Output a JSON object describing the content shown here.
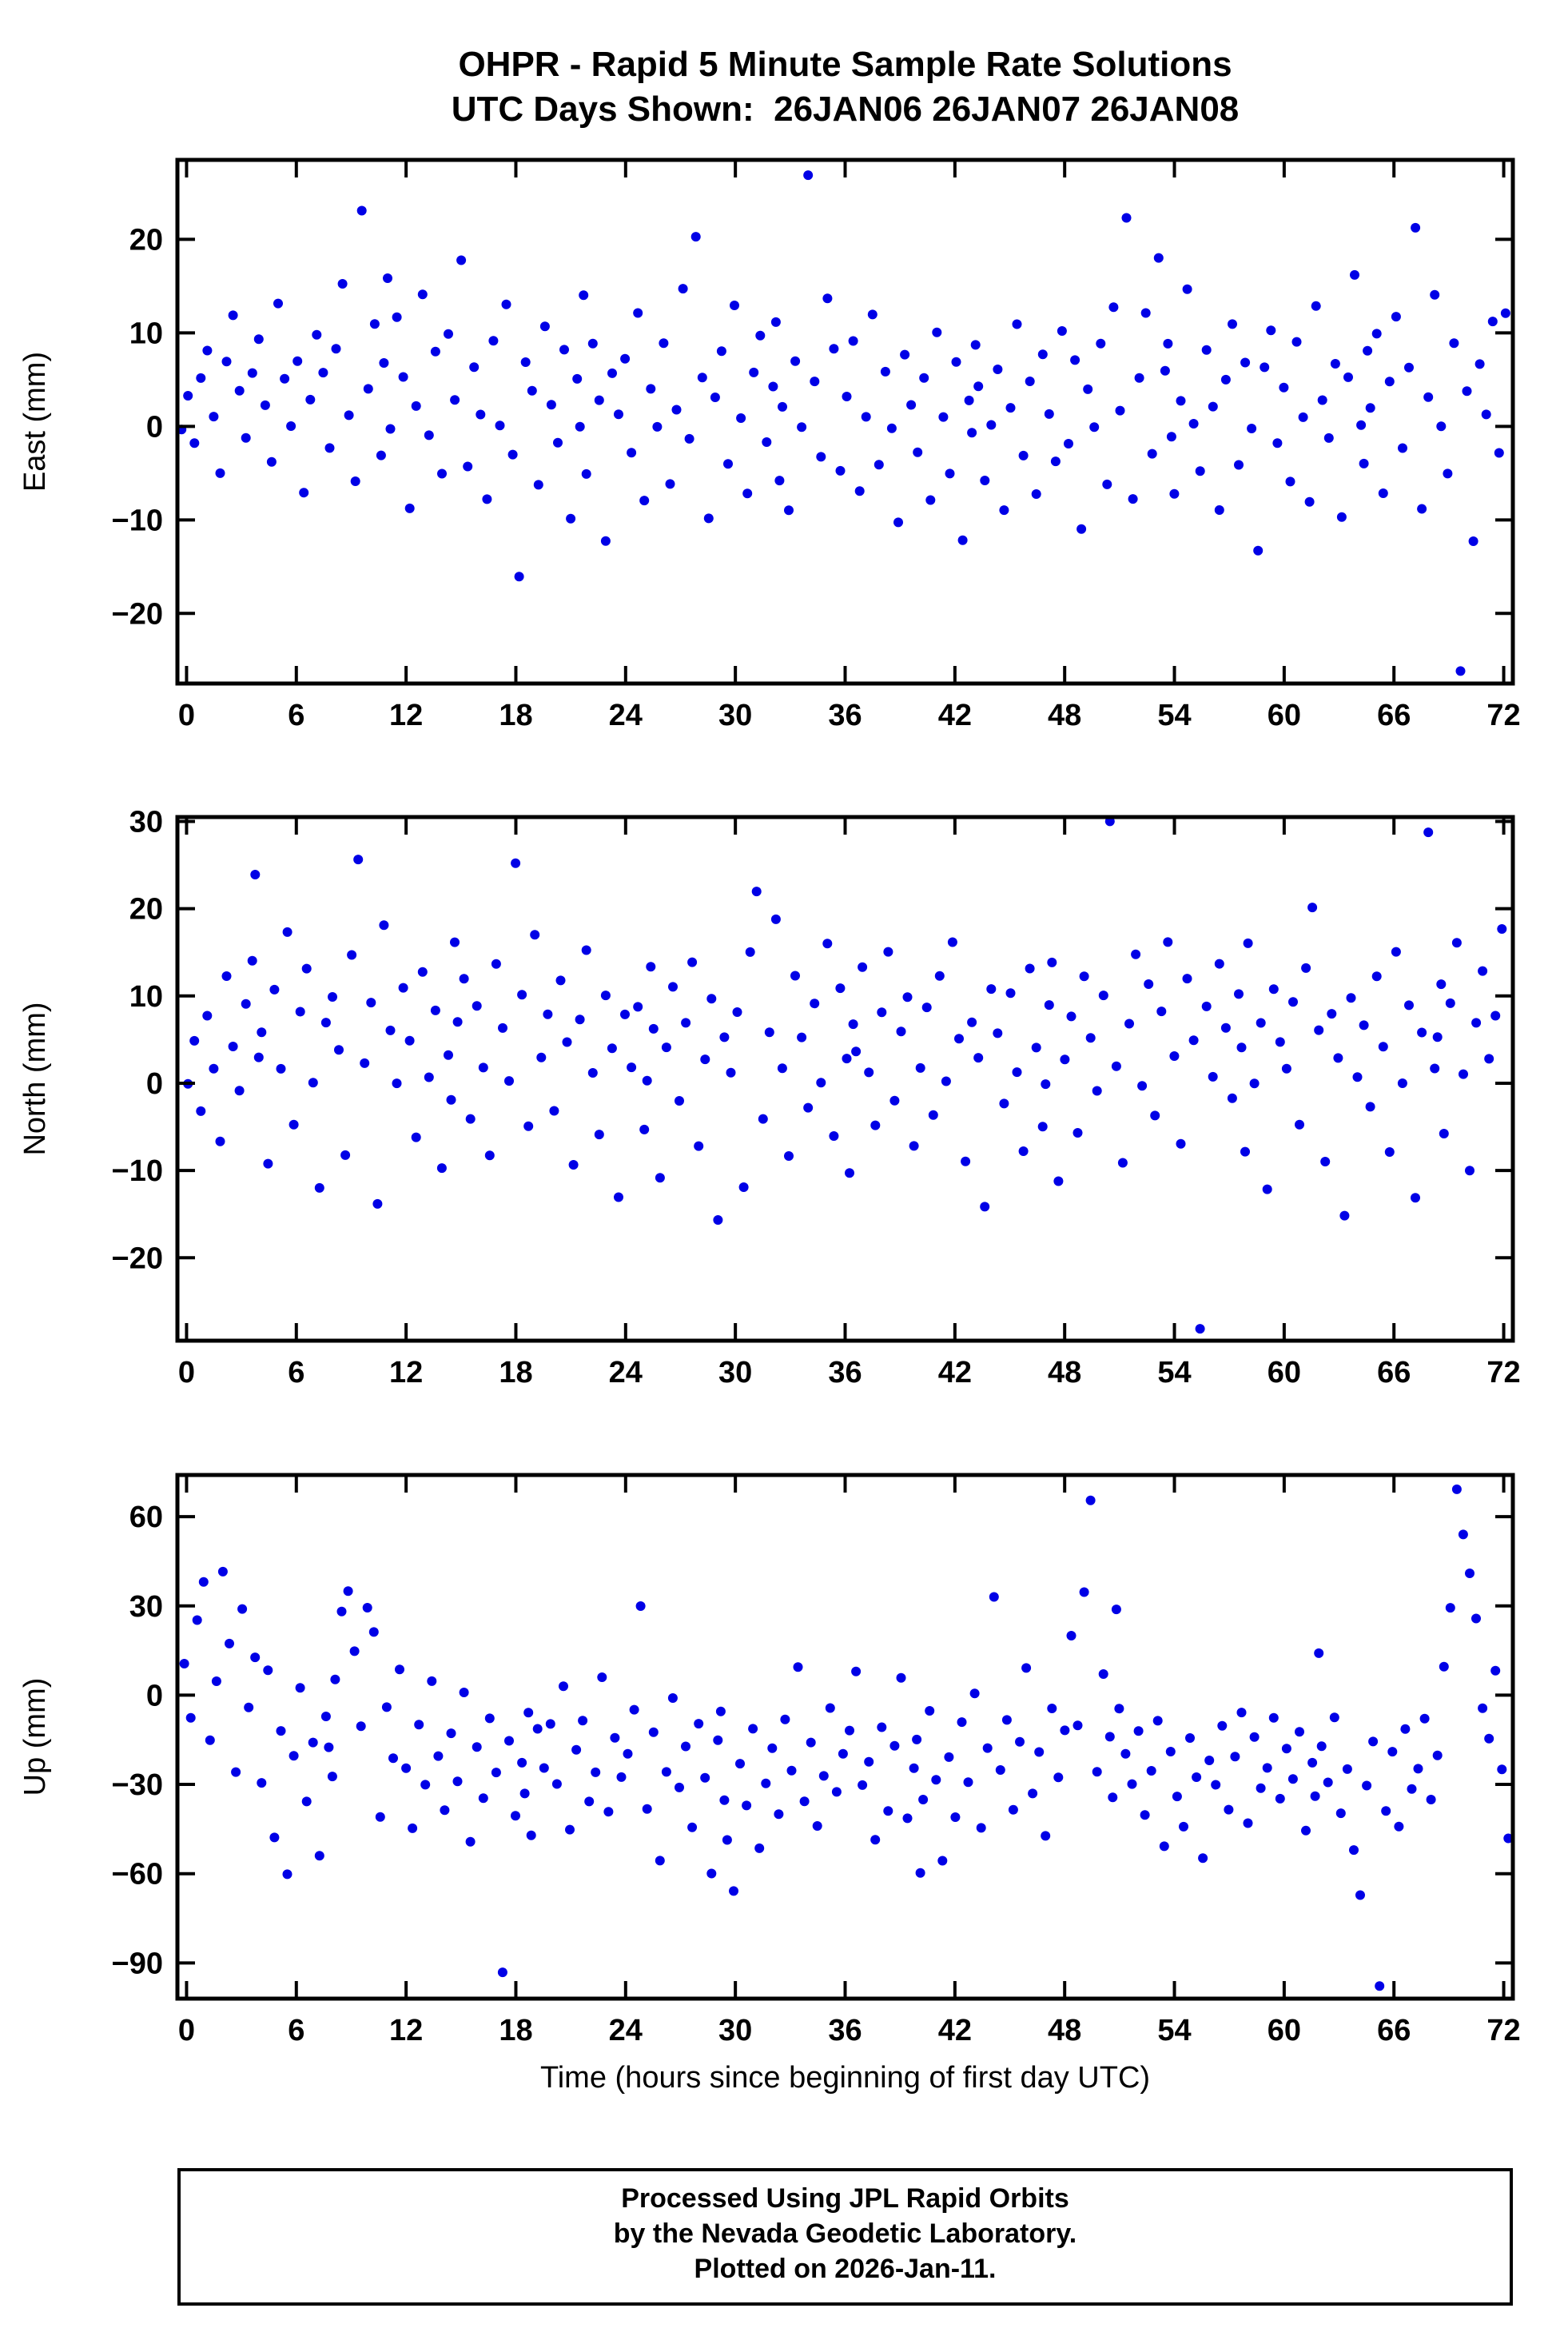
{
  "title": {
    "line1": "OHPR - Rapid 5 Minute Sample Rate Solutions",
    "line2": "UTC Days Shown:  26JAN06 26JAN07 26JAN08"
  },
  "xlabel": "Time (hours since beginning of first day UTC)",
  "footer": {
    "line1": "Processed Using JPL Rapid Orbits",
    "line2": "by the Nevada Geodetic Laboratory.",
    "line3": "Plotted on 2026-Jan-11."
  },
  "colors": {
    "points": "#0000e6",
    "axis": "#000000"
  },
  "chart_data": [
    {
      "type": "scatter",
      "name": "East",
      "ylabel": "East (mm)",
      "xlim": [
        -0.5,
        72.5
      ],
      "ylim": [
        -27.5,
        28.5
      ],
      "yticks": [
        -20,
        -10,
        0,
        10,
        20
      ],
      "xticks": [
        0,
        6,
        12,
        18,
        24,
        30,
        36,
        42,
        48,
        54,
        60,
        66,
        72
      ],
      "x_max_hours": 72,
      "n_points": 216,
      "y": [
        0,
        3,
        -2,
        5,
        8,
        1,
        -5,
        7,
        12,
        4,
        -1,
        6,
        9,
        2,
        -4,
        13,
        5,
        0,
        7,
        -7,
        3,
        10,
        6,
        -2,
        8,
        15,
        1,
        -6,
        23,
        4,
        11,
        -3,
        16,
        7,
        0,
        12,
        5,
        -9,
        2,
        14,
        -1,
        8,
        -5,
        10,
        3,
        18,
        -4,
        6,
        1,
        -8,
        9,
        0,
        13,
        -3,
        -16,
        7,
        4,
        -6,
        11,
        2,
        -2,
        8,
        -10,
        5,
        14,
        0,
        -5,
        9,
        3,
        -12,
        6,
        1,
        7,
        -3,
        12,
        -8,
        4,
        0,
        9,
        -6,
        2,
        15,
        -1,
        20,
        5,
        -10,
        3,
        8,
        -4,
        13,
        1,
        -7,
        6,
        10,
        -2,
        4,
        -6,
        11,
        2,
        -9,
        7,
        0,
        27,
        5,
        -3,
        14,
        8,
        -5,
        3,
        9,
        -7,
        1,
        12,
        -4,
        6,
        0,
        -10,
        8,
        2,
        -3,
        5,
        -8,
        10,
        1,
        -5,
        7,
        -12,
        3,
        9,
        -1,
        4,
        -6,
        0,
        6,
        -9,
        2,
        11,
        -3,
        5,
        -7,
        8,
        1,
        -4,
        10,
        -2,
        7,
        -11,
        4,
        0,
        9,
        -6,
        13,
        2,
        22,
        -8,
        5,
        12,
        -3,
        18,
        6,
        -1,
        9,
        -7,
        3,
        15,
        0,
        -5,
        8,
        2,
        -9,
        5,
        11,
        -4,
        7,
        0,
        -13,
        6,
        10,
        -2,
        4,
        -6,
        9,
        1,
        -8,
        13,
        3,
        -1,
        7,
        -10,
        5,
        16,
        0,
        8,
        -4,
        2,
        10,
        -7,
        5,
        12,
        -2,
        6,
        21,
        -9,
        3,
        14,
        0,
        -5,
        9,
        -26,
        4,
        -12,
        7,
        1,
        11,
        -3,
        12
      ]
    },
    {
      "type": "scatter",
      "name": "North",
      "ylabel": "North (mm)",
      "xlim": [
        -0.5,
        72.5
      ],
      "ylim": [
        -29.5,
        30.5
      ],
      "yticks": [
        -20,
        -10,
        0,
        10,
        20,
        30
      ],
      "xticks": [
        0,
        6,
        12,
        18,
        24,
        30,
        36,
        42,
        48,
        54,
        60,
        66,
        72
      ],
      "x_max_hours": 72,
      "n_points": 216,
      "y": [
        0,
        5,
        -3,
        8,
        2,
        -7,
        12,
        4,
        -1,
        9,
        14,
        3,
        24,
        6,
        -9,
        11,
        2,
        17,
        -5,
        8,
        13,
        0,
        -12,
        7,
        10,
        4,
        -8,
        15,
        26,
        2,
        9,
        -14,
        18,
        6,
        0,
        11,
        5,
        -6,
        13,
        1,
        8,
        -10,
        3,
        16,
        -2,
        7,
        12,
        -4,
        9,
        2,
        -8,
        14,
        6,
        0,
        25,
        10,
        -5,
        17,
        3,
        8,
        -3,
        12,
        5,
        -9,
        7,
        15,
        1,
        -6,
        10,
        4,
        -13,
        8,
        2,
        9,
        -5,
        13,
        0,
        6,
        -11,
        4,
        11,
        -2,
        7,
        14,
        -7,
        3,
        10,
        -16,
        5,
        1,
        8,
        -12,
        15,
        22,
        -4,
        6,
        19,
        2,
        -8,
        12,
        5,
        -3,
        9,
        0,
        16,
        -6,
        11,
        3,
        7,
        -10,
        4,
        13,
        1,
        -5,
        8,
        15,
        -2,
        6,
        10,
        -7,
        2,
        9,
        -4,
        12,
        0,
        16,
        5,
        -9,
        7,
        3,
        -14,
        11,
        6,
        -2,
        10,
        1,
        -8,
        13,
        4,
        -5,
        9,
        0,
        14,
        -11,
        3,
        8,
        -6,
        12,
        5,
        -1,
        10,
        30,
        2,
        -9,
        7,
        15,
        0,
        11,
        -4,
        8,
        16,
        3,
        -7,
        12,
        5,
        -28,
        9,
        1,
        14,
        6,
        -2,
        10,
        -8,
        4,
        16,
        0,
        7,
        -12,
        11,
        5,
        2,
        9,
        -5,
        13,
        20,
        6,
        -9,
        8,
        3,
        -15,
        10,
        1,
        7,
        -3,
        12,
        4,
        -8,
        15,
        0,
        9,
        -13,
        6,
        29,
        2,
        11,
        5,
        -6,
        9,
        16,
        1,
        -10,
        7,
        13,
        3,
        8,
        18
      ]
    },
    {
      "type": "scatter",
      "name": "Up",
      "ylabel": "Up (mm)",
      "xlim": [
        -0.5,
        72.5
      ],
      "ylim": [
        -102,
        74
      ],
      "yticks": [
        -90,
        -60,
        -30,
        0,
        30,
        60
      ],
      "xticks": [
        0,
        6,
        12,
        18,
        24,
        30,
        36,
        42,
        48,
        54,
        60,
        66,
        72
      ],
      "x_max_hours": 72,
      "n_points": 216,
      "y": [
        10,
        -8,
        25,
        38,
        -15,
        5,
        42,
        18,
        -25,
        30,
        -5,
        12,
        -30,
        8,
        -48,
        -12,
        -60,
        -20,
        3,
        -35,
        -15,
        -55,
        -8,
        -28,
        -18,
        5,
        28,
        35,
        15,
        -10,
        30,
        22,
        -40,
        -5,
        -22,
        8,
        -25,
        -45,
        -10,
        -30,
        5,
        -20,
        -38,
        -12,
        -28,
        0,
        -50,
        -18,
        -35,
        -8,
        -26,
        -93,
        -15,
        -40,
        -22,
        -5,
        -32,
        -48,
        -12,
        -25,
        -10,
        -30,
        3,
        -45,
        -18,
        -8,
        -35,
        -25,
        5,
        -40,
        -15,
        -28,
        -20,
        -5,
        30,
        -38,
        -12,
        -55,
        -25,
        0,
        -32,
        -18,
        -45,
        -10,
        -28,
        -60,
        -15,
        -35,
        -5,
        -48,
        -65,
        -22,
        -38,
        -12,
        -52,
        -30,
        -18,
        -40,
        -8,
        -25,
        10,
        -35,
        -15,
        -45,
        -28,
        -5,
        -33,
        -20,
        -12,
        8,
        -30,
        -22,
        -48,
        -10,
        -38,
        -18,
        5,
        -42,
        -25,
        -60,
        -15,
        -35,
        -5,
        -28,
        -55,
        -20,
        -40,
        -10,
        -30,
        0,
        -45,
        -18,
        33,
        -25,
        -8,
        -38,
        -15,
        10,
        -32,
        -20,
        -48,
        -5,
        -28,
        -12,
        20,
        -10,
        35,
        66,
        -25,
        8,
        -15,
        28,
        -35,
        -5,
        -20,
        -30,
        -12,
        -40,
        -25,
        -8,
        -50,
        -18,
        -35,
        -45,
        -15,
        -28,
        -55,
        -22,
        -30,
        -10,
        -38,
        -20,
        -5,
        -42,
        -15,
        -32,
        -25,
        -8,
        -35,
        -18,
        -28,
        -12,
        -45,
        -22,
        15,
        -35,
        -18,
        -30,
        -8,
        -40,
        -25,
        -52,
        -67,
        -30,
        -15,
        -97,
        -38,
        -20,
        -45,
        -12,
        -32,
        -25,
        -8,
        -35,
        -20,
        10,
        30,
        70,
        55,
        40,
        25,
        -5,
        -15,
        8,
        -25,
        -48
      ]
    }
  ]
}
